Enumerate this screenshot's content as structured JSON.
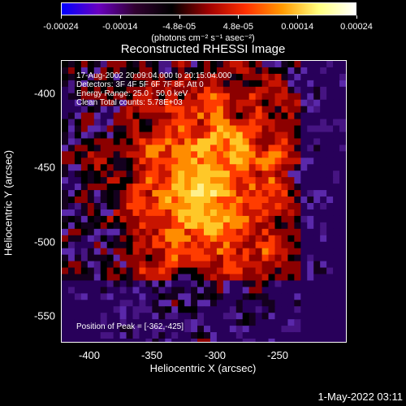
{
  "colorbar": {
    "ticks": [
      "-0.00024",
      "-0.00014",
      "-4.8e-05",
      "4.8e-05",
      "0.00014",
      "0.00024"
    ],
    "units_label": "(photons cm⁻² s⁻¹ asec⁻²)",
    "colors": [
      "#0000ff",
      "#6a00c0",
      "#300030",
      "#000000",
      "#a00000",
      "#ff3000",
      "#ff9a00",
      "#ffff80",
      "#ffffff"
    ]
  },
  "plot": {
    "title": "Reconstructed RHESSI Image",
    "annotation": {
      "line1": "17-Aug-2002 20:09:04.000 to 20:15:04.000",
      "line2": "Detectors: 3F 4F 5F 6F 7F 8F, Att 0",
      "line3": "Energy Range: 25.0 - 50.0 keV",
      "line4": "Clean     Total counts: 5.78E+03",
      "peak": "Position of Peak = [-362,-425]"
    },
    "xlabel": "Heliocentric X (arcsec)",
    "ylabel": "Heliocentric Y (arcsec)",
    "x_ticks": [
      "-400",
      "-350",
      "-300",
      "-250"
    ],
    "y_ticks": [
      "-400",
      "-450",
      "-500",
      "-550"
    ],
    "timestamp": "1-May-2022 03:11"
  },
  "chart_data": {
    "type": "heatmap",
    "title": "Reconstructed RHESSI Image",
    "xlabel": "Heliocentric X (arcsec)",
    "ylabel": "Heliocentric Y (arcsec)",
    "xlim": [
      -415,
      -229
    ],
    "ylim": [
      -570,
      -383
    ],
    "colorbar_range": [
      -0.00024,
      0.00024
    ],
    "peak_position": [
      -362,
      -425
    ],
    "description_colors": [
      "blue",
      "purple",
      "black",
      "red",
      "orange",
      "yellow",
      "white"
    ]
  }
}
